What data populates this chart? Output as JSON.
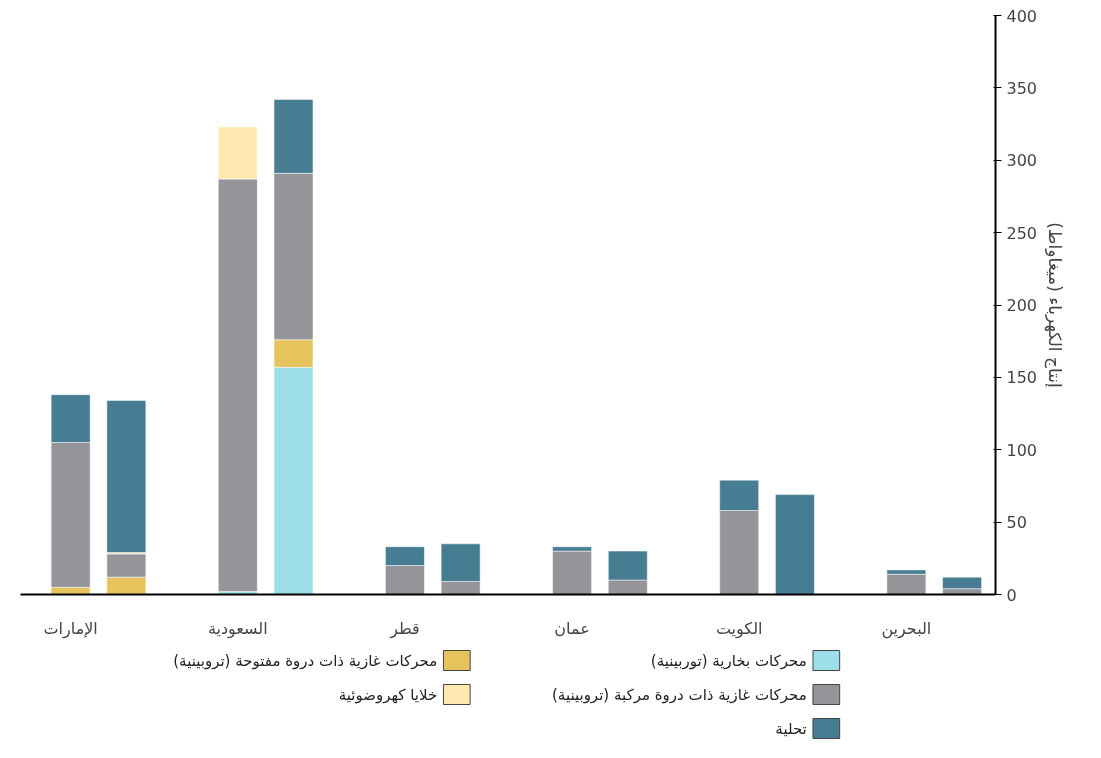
{
  "chart_data": {
    "type": "bar",
    "stacked": true,
    "ylabel": "إنتاج الكهرباء (ميغاواط)",
    "categories": [
      "الإمارات",
      null,
      null,
      "السعودية",
      null,
      null,
      "قطر",
      null,
      null,
      "عمان",
      null,
      null,
      "الكويت",
      null,
      null,
      "البحرين",
      null
    ],
    "series": [
      {
        "name": "محركات بخارية (توربينية)",
        "color": "#9ddfe8",
        "values": [
          null,
          null,
          null,
          2,
          157,
          null,
          null,
          null,
          null,
          null,
          null,
          null,
          null,
          null,
          null,
          null,
          null
        ]
      },
      {
        "name": "محركات غازية ذات دروة مفتوحة (تروبينية)",
        "color": "#e6c35c",
        "values": [
          5,
          12,
          null,
          null,
          19,
          null,
          null,
          null,
          null,
          null,
          null,
          null,
          null,
          null,
          null,
          null,
          null
        ]
      },
      {
        "name": "محركات غازية ذات دروة مركبة (تروبينية)",
        "color": "#939598",
        "values": [
          100,
          16,
          null,
          285,
          115,
          null,
          20,
          9,
          null,
          30,
          10,
          null,
          58,
          null,
          null,
          14,
          4
        ]
      },
      {
        "name": "خلايا كهروضوئية",
        "color": "#fde9b0",
        "values": [
          null,
          1,
          null,
          36,
          null,
          null,
          null,
          null,
          null,
          null,
          null,
          null,
          null,
          null,
          null,
          null,
          null
        ]
      },
      {
        "name": "تحلية",
        "color": "#477d92",
        "values": [
          33,
          105,
          null,
          null,
          51,
          null,
          13,
          26,
          null,
          3,
          20,
          null,
          21,
          69,
          null,
          3,
          8
        ]
      }
    ],
    "ylim": [
      0,
      400
    ],
    "yticks": [
      0,
      50,
      100,
      150,
      200,
      250,
      300,
      350,
      400
    ],
    "grid": false,
    "legend": "bottom"
  }
}
